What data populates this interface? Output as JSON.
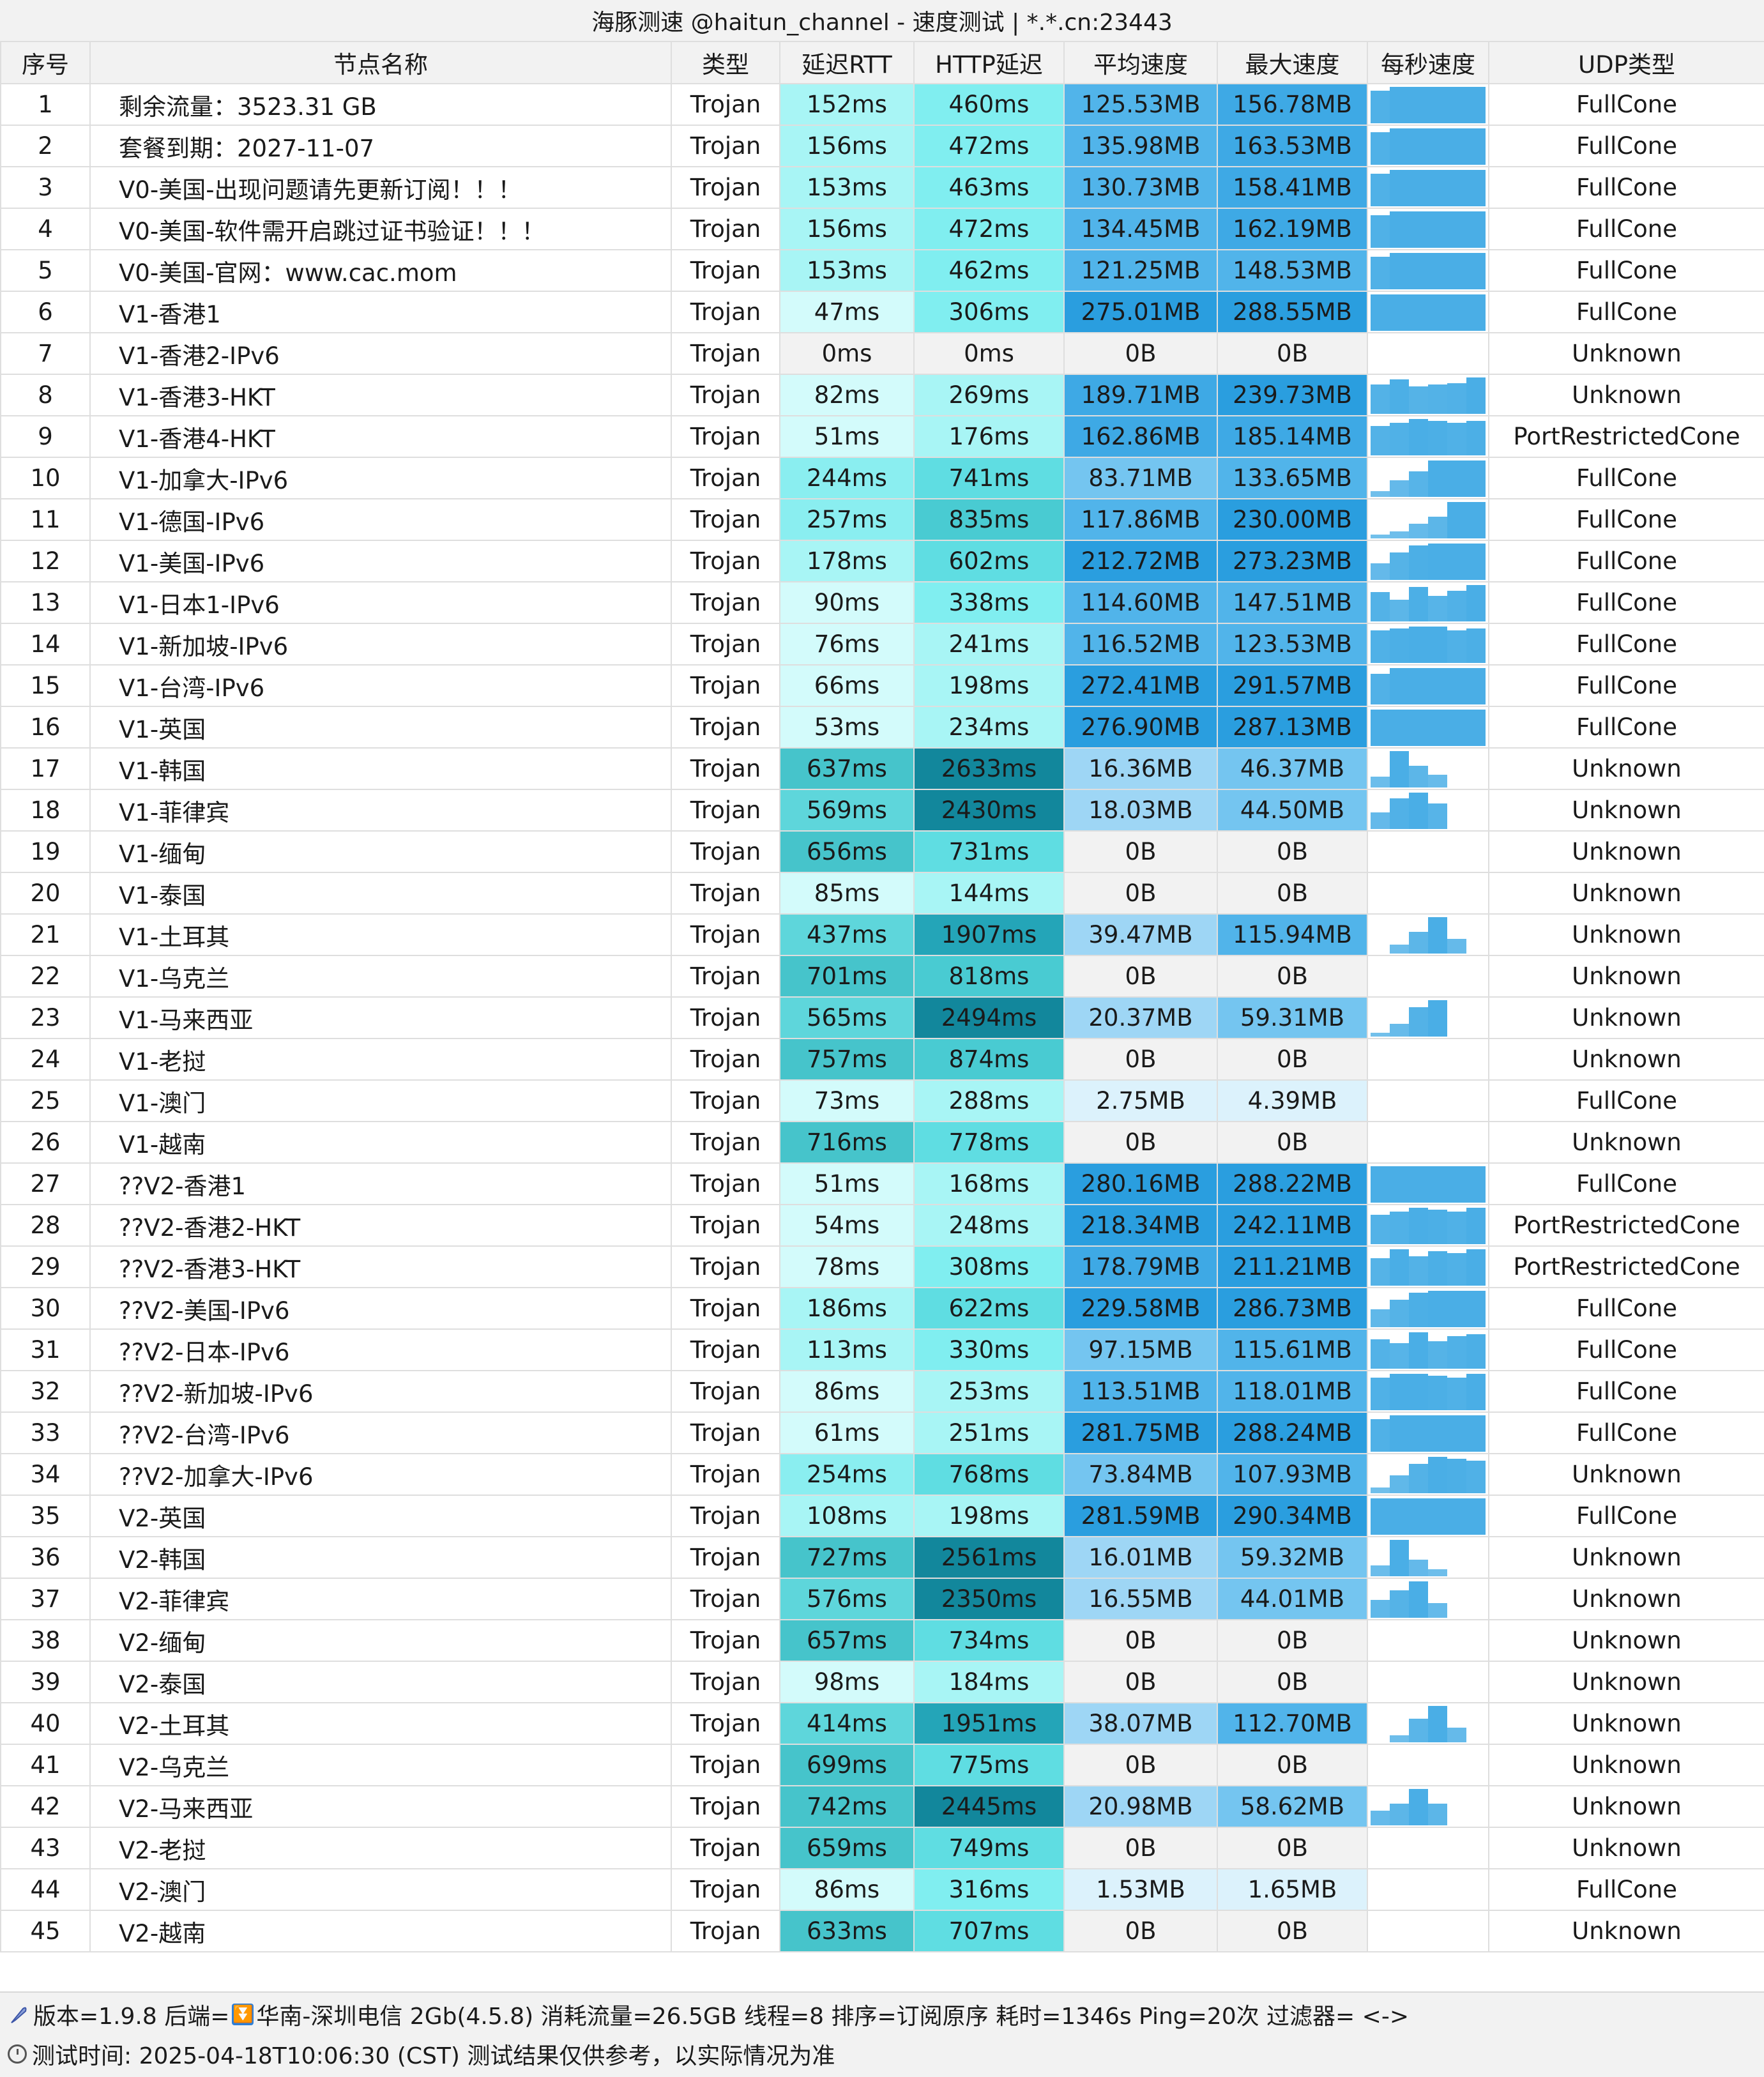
{
  "title": "海豚测速 @haitun_channel - 速度测试 | *.*.cn:23443",
  "headers": [
    "序号",
    "节点名称",
    "类型",
    "延迟RTT",
    "HTTP延迟",
    "平均速度",
    "最大速度",
    "每秒速度",
    "UDP类型"
  ],
  "rows": [
    {
      "idx": "1",
      "name": "剩余流量：3523.31 GB",
      "type": "Trojan",
      "rtt": "152ms",
      "http": "460ms",
      "avg": "125.53MB",
      "max": "156.78MB",
      "udp": "FullCone",
      "spark": [
        0.9,
        1,
        1,
        1,
        1,
        1
      ]
    },
    {
      "idx": "2",
      "name": "套餐到期：2027-11-07",
      "type": "Trojan",
      "rtt": "156ms",
      "http": "472ms",
      "avg": "135.98MB",
      "max": "163.53MB",
      "udp": "FullCone",
      "spark": [
        0.9,
        1,
        1,
        1,
        1,
        1
      ]
    },
    {
      "idx": "3",
      "name": "V0-美国-出现问题请先更新订阅！！！",
      "type": "Trojan",
      "rtt": "153ms",
      "http": "463ms",
      "avg": "130.73MB",
      "max": "158.41MB",
      "udp": "FullCone",
      "spark": [
        0.9,
        1,
        1,
        1,
        1,
        1
      ]
    },
    {
      "idx": "4",
      "name": "V0-美国-软件需开启跳过证书验证！！！",
      "type": "Trojan",
      "rtt": "156ms",
      "http": "472ms",
      "avg": "134.45MB",
      "max": "162.19MB",
      "udp": "FullCone",
      "spark": [
        0.9,
        1,
        1,
        1,
        1,
        1
      ]
    },
    {
      "idx": "5",
      "name": "V0-美国-官网：www.cac.mom",
      "type": "Trojan",
      "rtt": "153ms",
      "http": "462ms",
      "avg": "121.25MB",
      "max": "148.53MB",
      "udp": "FullCone",
      "spark": [
        0.9,
        1,
        1,
        1,
        1,
        1
      ]
    },
    {
      "idx": "6",
      "name": "V1-香港1",
      "type": "Trojan",
      "rtt": "47ms",
      "http": "306ms",
      "avg": "275.01MB",
      "max": "288.55MB",
      "udp": "FullCone",
      "spark": [
        1,
        1,
        1,
        1,
        1,
        1
      ]
    },
    {
      "idx": "7",
      "name": "V1-香港2-IPv6",
      "type": "Trojan",
      "rtt": "0ms",
      "http": "0ms",
      "avg": "0B",
      "max": "0B",
      "udp": "Unknown",
      "spark": []
    },
    {
      "idx": "8",
      "name": "V1-香港3-HKT",
      "type": "Trojan",
      "rtt": "82ms",
      "http": "269ms",
      "avg": "189.71MB",
      "max": "239.73MB",
      "udp": "Unknown",
      "spark": [
        0.8,
        0.95,
        0.75,
        0.8,
        0.85,
        1
      ]
    },
    {
      "idx": "9",
      "name": "V1-香港4-HKT",
      "type": "Trojan",
      "rtt": "51ms",
      "http": "176ms",
      "avg": "162.86MB",
      "max": "185.14MB",
      "udp": "PortRestrictedCone",
      "spark": [
        0.8,
        0.9,
        1,
        0.95,
        0.9,
        0.95
      ]
    },
    {
      "idx": "10",
      "name": "V1-加拿大-IPv6",
      "type": "Trojan",
      "rtt": "244ms",
      "http": "741ms",
      "avg": "83.71MB",
      "max": "133.65MB",
      "udp": "FullCone",
      "spark": [
        0.15,
        0.45,
        0.7,
        1,
        1,
        1
      ]
    },
    {
      "idx": "11",
      "name": "V1-德国-IPv6",
      "type": "Trojan",
      "rtt": "257ms",
      "http": "835ms",
      "avg": "117.86MB",
      "max": "230.00MB",
      "udp": "FullCone",
      "spark": [
        0.1,
        0.2,
        0.4,
        0.6,
        1,
        1
      ]
    },
    {
      "idx": "12",
      "name": "V1-美国-IPv6",
      "type": "Trojan",
      "rtt": "178ms",
      "http": "602ms",
      "avg": "212.72MB",
      "max": "273.23MB",
      "udp": "FullCone",
      "spark": [
        0.45,
        0.75,
        0.95,
        1,
        1,
        1
      ]
    },
    {
      "idx": "13",
      "name": "V1-日本1-IPv6",
      "type": "Trojan",
      "rtt": "90ms",
      "http": "338ms",
      "avg": "114.60MB",
      "max": "147.51MB",
      "udp": "FullCone",
      "spark": [
        0.8,
        0.6,
        0.95,
        0.7,
        0.85,
        1
      ]
    },
    {
      "idx": "14",
      "name": "V1-新加坡-IPv6",
      "type": "Trojan",
      "rtt": "76ms",
      "http": "241ms",
      "avg": "116.52MB",
      "max": "123.53MB",
      "udp": "FullCone",
      "spark": [
        0.9,
        0.95,
        1,
        1,
        0.9,
        0.95
      ]
    },
    {
      "idx": "15",
      "name": "V1-台湾-IPv6",
      "type": "Trojan",
      "rtt": "66ms",
      "http": "198ms",
      "avg": "272.41MB",
      "max": "291.57MB",
      "udp": "FullCone",
      "spark": [
        0.85,
        1,
        1,
        1,
        1,
        1
      ]
    },
    {
      "idx": "16",
      "name": "V1-英国",
      "type": "Trojan",
      "rtt": "53ms",
      "http": "234ms",
      "avg": "276.90MB",
      "max": "287.13MB",
      "udp": "FullCone",
      "spark": [
        1,
        1,
        1,
        1,
        1,
        1
      ]
    },
    {
      "idx": "17",
      "name": "V1-韩国",
      "type": "Trojan",
      "rtt": "637ms",
      "http": "2633ms",
      "avg": "16.36MB",
      "max": "46.37MB",
      "udp": "Unknown",
      "spark": [
        0.3,
        1,
        0.6,
        0.35,
        0,
        0
      ]
    },
    {
      "idx": "18",
      "name": "V1-菲律宾",
      "type": "Trojan",
      "rtt": "569ms",
      "http": "2430ms",
      "avg": "18.03MB",
      "max": "44.50MB",
      "udp": "Unknown",
      "spark": [
        0.45,
        0.85,
        1,
        0.7,
        0,
        0
      ]
    },
    {
      "idx": "19",
      "name": "V1-缅甸",
      "type": "Trojan",
      "rtt": "656ms",
      "http": "731ms",
      "avg": "0B",
      "max": "0B",
      "udp": "Unknown",
      "spark": []
    },
    {
      "idx": "20",
      "name": "V1-泰国",
      "type": "Trojan",
      "rtt": "85ms",
      "http": "144ms",
      "avg": "0B",
      "max": "0B",
      "udp": "Unknown",
      "spark": []
    },
    {
      "idx": "21",
      "name": "V1-土耳其",
      "type": "Trojan",
      "rtt": "437ms",
      "http": "1907ms",
      "avg": "39.47MB",
      "max": "115.94MB",
      "udp": "Unknown",
      "spark": [
        0,
        0.25,
        0.6,
        1,
        0.4,
        0
      ]
    },
    {
      "idx": "22",
      "name": "V1-乌克兰",
      "type": "Trojan",
      "rtt": "701ms",
      "http": "818ms",
      "avg": "0B",
      "max": "0B",
      "udp": "Unknown",
      "spark": []
    },
    {
      "idx": "23",
      "name": "V1-马来西亚",
      "type": "Trojan",
      "rtt": "565ms",
      "http": "2494ms",
      "avg": "20.37MB",
      "max": "59.31MB",
      "udp": "Unknown",
      "spark": [
        0.1,
        0.35,
        0.8,
        1,
        0,
        0
      ]
    },
    {
      "idx": "24",
      "name": "V1-老挝",
      "type": "Trojan",
      "rtt": "757ms",
      "http": "874ms",
      "avg": "0B",
      "max": "0B",
      "udp": "Unknown",
      "spark": []
    },
    {
      "idx": "25",
      "name": "V1-澳门",
      "type": "Trojan",
      "rtt": "73ms",
      "http": "288ms",
      "avg": "2.75MB",
      "max": "4.39MB",
      "udp": "FullCone",
      "spark": []
    },
    {
      "idx": "26",
      "name": "V1-越南",
      "type": "Trojan",
      "rtt": "716ms",
      "http": "778ms",
      "avg": "0B",
      "max": "0B",
      "udp": "Unknown",
      "spark": []
    },
    {
      "idx": "27",
      "name": "??V2-香港1",
      "type": "Trojan",
      "rtt": "51ms",
      "http": "168ms",
      "avg": "280.16MB",
      "max": "288.22MB",
      "udp": "FullCone",
      "spark": [
        1,
        1,
        1,
        1,
        1,
        1
      ]
    },
    {
      "idx": "28",
      "name": "??V2-香港2-HKT",
      "type": "Trojan",
      "rtt": "54ms",
      "http": "248ms",
      "avg": "218.34MB",
      "max": "242.11MB",
      "udp": "PortRestrictedCone",
      "spark": [
        0.8,
        0.9,
        1,
        0.95,
        0.9,
        1
      ]
    },
    {
      "idx": "29",
      "name": "??V2-香港3-HKT",
      "type": "Trojan",
      "rtt": "78ms",
      "http": "308ms",
      "avg": "178.79MB",
      "max": "211.21MB",
      "udp": "PortRestrictedCone",
      "spark": [
        0.75,
        1,
        0.8,
        0.95,
        0.9,
        1
      ]
    },
    {
      "idx": "30",
      "name": "??V2-美国-IPv6",
      "type": "Trojan",
      "rtt": "186ms",
      "http": "622ms",
      "avg": "229.58MB",
      "max": "286.73MB",
      "udp": "FullCone",
      "spark": [
        0.5,
        0.75,
        0.95,
        1,
        1,
        1
      ]
    },
    {
      "idx": "31",
      "name": "??V2-日本-IPv6",
      "type": "Trojan",
      "rtt": "113ms",
      "http": "330ms",
      "avg": "97.15MB",
      "max": "115.61MB",
      "udp": "FullCone",
      "spark": [
        0.8,
        0.7,
        1,
        0.75,
        0.9,
        0.95
      ]
    },
    {
      "idx": "32",
      "name": "??V2-新加坡-IPv6",
      "type": "Trojan",
      "rtt": "86ms",
      "http": "253ms",
      "avg": "113.51MB",
      "max": "118.01MB",
      "udp": "FullCone",
      "spark": [
        0.9,
        1,
        1,
        0.95,
        0.9,
        1
      ]
    },
    {
      "idx": "33",
      "name": "??V2-台湾-IPv6",
      "type": "Trojan",
      "rtt": "61ms",
      "http": "251ms",
      "avg": "281.75MB",
      "max": "288.24MB",
      "udp": "FullCone",
      "spark": [
        0.9,
        1,
        1,
        1,
        1,
        1
      ]
    },
    {
      "idx": "34",
      "name": "??V2-加拿大-IPv6",
      "type": "Trojan",
      "rtt": "254ms",
      "http": "768ms",
      "avg": "73.84MB",
      "max": "107.93MB",
      "udp": "Unknown",
      "spark": [
        0.15,
        0.5,
        0.8,
        1,
        0.95,
        0.9
      ]
    },
    {
      "idx": "35",
      "name": "V2-英国",
      "type": "Trojan",
      "rtt": "108ms",
      "http": "198ms",
      "avg": "281.59MB",
      "max": "290.34MB",
      "udp": "FullCone",
      "spark": [
        1,
        1,
        1,
        1,
        1,
        1
      ]
    },
    {
      "idx": "36",
      "name": "V2-韩国",
      "type": "Trojan",
      "rtt": "727ms",
      "http": "2561ms",
      "avg": "16.01MB",
      "max": "59.32MB",
      "udp": "Unknown",
      "spark": [
        0.3,
        1,
        0.45,
        0.2,
        0,
        0
      ]
    },
    {
      "idx": "37",
      "name": "V2-菲律宾",
      "type": "Trojan",
      "rtt": "576ms",
      "http": "2350ms",
      "avg": "16.55MB",
      "max": "44.01MB",
      "udp": "Unknown",
      "spark": [
        0.5,
        0.75,
        1,
        0.4,
        0,
        0
      ]
    },
    {
      "idx": "38",
      "name": "V2-缅甸",
      "type": "Trojan",
      "rtt": "657ms",
      "http": "734ms",
      "avg": "0B",
      "max": "0B",
      "udp": "Unknown",
      "spark": []
    },
    {
      "idx": "39",
      "name": "V2-泰国",
      "type": "Trojan",
      "rtt": "98ms",
      "http": "184ms",
      "avg": "0B",
      "max": "0B",
      "udp": "Unknown",
      "spark": []
    },
    {
      "idx": "40",
      "name": "V2-土耳其",
      "type": "Trojan",
      "rtt": "414ms",
      "http": "1951ms",
      "avg": "38.07MB",
      "max": "112.70MB",
      "udp": "Unknown",
      "spark": [
        0,
        0.2,
        0.65,
        1,
        0.4,
        0
      ]
    },
    {
      "idx": "41",
      "name": "V2-乌克兰",
      "type": "Trojan",
      "rtt": "699ms",
      "http": "775ms",
      "avg": "0B",
      "max": "0B",
      "udp": "Unknown",
      "spark": []
    },
    {
      "idx": "42",
      "name": "V2-马来西亚",
      "type": "Trojan",
      "rtt": "742ms",
      "http": "2445ms",
      "avg": "20.98MB",
      "max": "58.62MB",
      "udp": "Unknown",
      "spark": [
        0.4,
        0.6,
        1,
        0.6,
        0,
        0
      ]
    },
    {
      "idx": "43",
      "name": "V2-老挝",
      "type": "Trojan",
      "rtt": "659ms",
      "http": "749ms",
      "avg": "0B",
      "max": "0B",
      "udp": "Unknown",
      "spark": []
    },
    {
      "idx": "44",
      "name": "V2-澳门",
      "type": "Trojan",
      "rtt": "86ms",
      "http": "316ms",
      "avg": "1.53MB",
      "max": "1.65MB",
      "udp": "FullCone",
      "spark": []
    },
    {
      "idx": "45",
      "name": "V2-越南",
      "type": "Trojan",
      "rtt": "633ms",
      "http": "707ms",
      "avg": "0B",
      "max": "0B",
      "udp": "Unknown",
      "spark": []
    }
  ],
  "footer": {
    "line1_a": "版本=1.9.8  后端=",
    "line1_b": "华南-深圳电信 2Gb(4.5.8) 消耗流量=26.5GB  线程=8  排序=订阅原序  耗时=1346s  Ping=20次  过滤器= <->",
    "line2": "测试时间: 2025-04-18T10:06:30 (CST)  测试结果仅供参考，以实际情况为准"
  },
  "icons": {
    "footer_line1": "feather-icon",
    "footer_backend": "download-arrow-icon",
    "footer_line2": "clock-icon"
  },
  "colors": {
    "spark_bar": "#4aaee6",
    "header_bg": "#f2f2f2",
    "zero_speed_bg": "#f2f2f2"
  }
}
